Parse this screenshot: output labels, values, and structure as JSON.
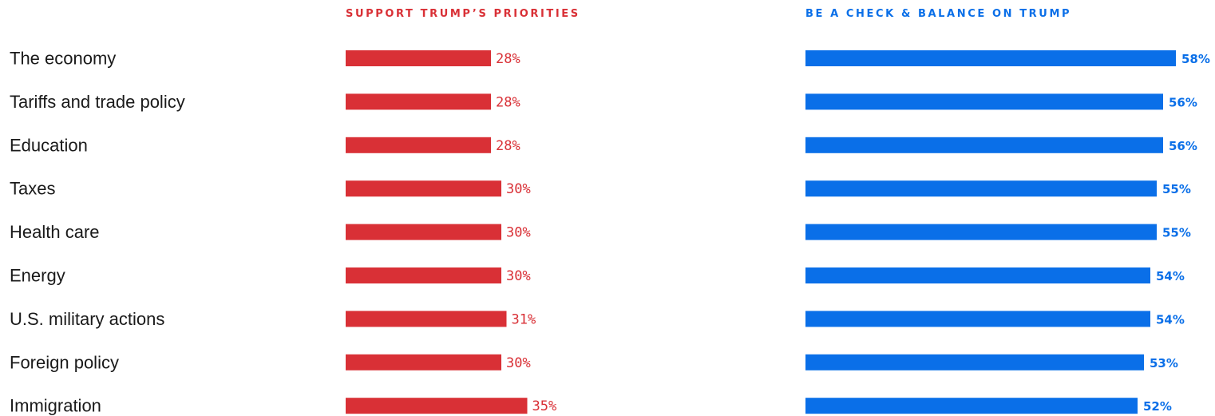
{
  "chart_data": {
    "type": "bar",
    "categories": [
      "The economy",
      "Tariffs and trade policy",
      "Education",
      "Taxes",
      "Health care",
      "Energy",
      "U.S. military actions",
      "Foreign policy",
      "Immigration"
    ],
    "series": [
      {
        "name": "SUPPORT TRUMP’S PRIORITIES",
        "values": [
          28,
          28,
          28,
          30,
          30,
          30,
          31,
          30,
          35
        ],
        "labels": [
          "28%",
          "28%",
          "28%",
          "30%",
          "30%",
          "30%",
          "31%",
          "30%",
          "35%"
        ],
        "color": "#d93036"
      },
      {
        "name": "BE A CHECK & BALANCE ON TRUMP",
        "values": [
          58,
          56,
          56,
          55,
          55,
          54,
          54,
          53,
          52
        ],
        "labels": [
          "58%",
          "56%",
          "56%",
          "55%",
          "55%",
          "54%",
          "54%",
          "53%",
          "52%"
        ],
        "color": "#0a6fe8"
      }
    ],
    "label_color": "#1a1a1a",
    "grid": false
  }
}
